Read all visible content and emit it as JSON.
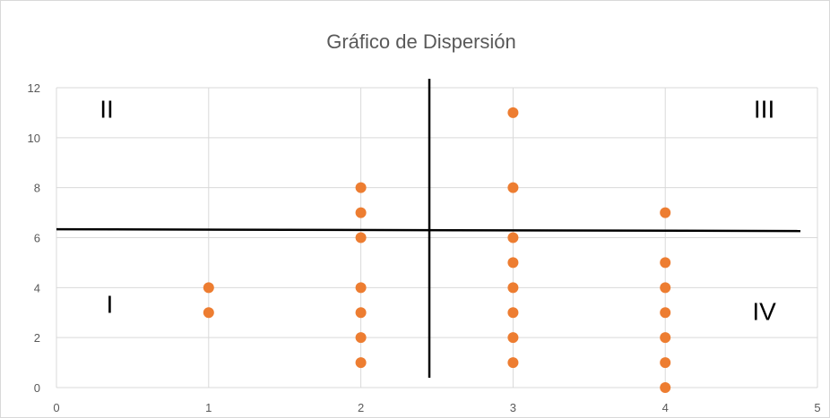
{
  "chart_data": {
    "type": "scatter",
    "title": "Gráfico de Dispersión",
    "xlabel": "",
    "ylabel": "",
    "xlim": [
      0,
      5
    ],
    "ylim": [
      0,
      12
    ],
    "x_ticks": [
      0,
      1,
      2,
      3,
      4,
      5
    ],
    "y_ticks": [
      0,
      2,
      4,
      6,
      8,
      10,
      12
    ],
    "grid": true,
    "legend": "none",
    "marker_color": "#ED7D31",
    "points": [
      {
        "x": 1,
        "y": 4
      },
      {
        "x": 1,
        "y": 3
      },
      {
        "x": 2,
        "y": 8
      },
      {
        "x": 2,
        "y": 7
      },
      {
        "x": 2,
        "y": 6
      },
      {
        "x": 2,
        "y": 4
      },
      {
        "x": 2,
        "y": 3
      },
      {
        "x": 2,
        "y": 2
      },
      {
        "x": 2,
        "y": 1
      },
      {
        "x": 3,
        "y": 11
      },
      {
        "x": 3,
        "y": 8
      },
      {
        "x": 3,
        "y": 6
      },
      {
        "x": 3,
        "y": 5
      },
      {
        "x": 3,
        "y": 4
      },
      {
        "x": 3,
        "y": 3
      },
      {
        "x": 3,
        "y": 2
      },
      {
        "x": 3,
        "y": 1
      },
      {
        "x": 4,
        "y": 7
      },
      {
        "x": 4,
        "y": 5
      },
      {
        "x": 4,
        "y": 4
      },
      {
        "x": 4,
        "y": 3
      },
      {
        "x": 4,
        "y": 2
      },
      {
        "x": 4,
        "y": 1
      },
      {
        "x": 4,
        "y": 0
      }
    ],
    "divider_lines": {
      "vertical_x": 2.45,
      "horizontal_y": 6.3,
      "color": "#000000"
    },
    "quadrant_labels": [
      {
        "label": "II",
        "x": 0.33,
        "y": 10.8
      },
      {
        "label": "III",
        "x": 4.65,
        "y": 10.8
      },
      {
        "label": "I",
        "x": 0.35,
        "y": 3.0
      },
      {
        "label": "IV",
        "x": 4.65,
        "y": 2.7
      }
    ]
  }
}
